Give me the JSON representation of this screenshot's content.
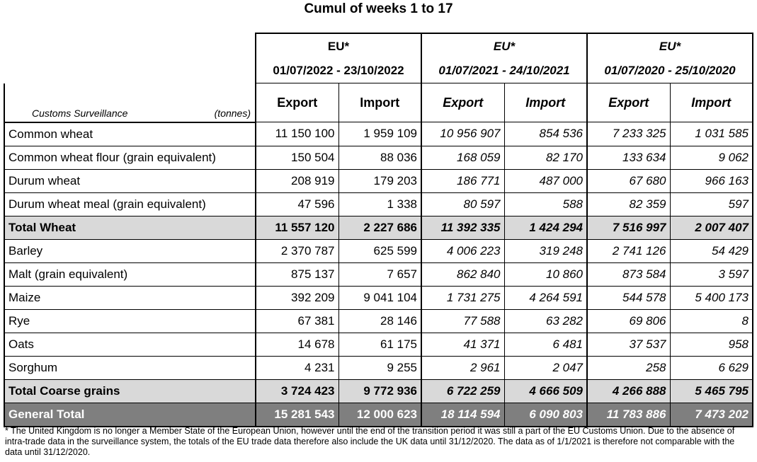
{
  "title": "Cumul of weeks 1 to 17",
  "header": {
    "customs_label": "Customs Surveillance",
    "unit_label": "(tonnes)",
    "periods": [
      {
        "region": "EU*",
        "dates": "01/07/2022 - 23/10/2022",
        "export": "Export",
        "import": "Import",
        "italic": false
      },
      {
        "region": "EU*",
        "dates": "01/07/2021 - 24/10/2021",
        "export": "Export",
        "import": "Import",
        "italic": true
      },
      {
        "region": "EU*",
        "dates": "01/07/2020 - 25/10/2020",
        "export": "Export",
        "import": "Import",
        "italic": true
      }
    ]
  },
  "rows": [
    {
      "label": "Common wheat",
      "type": "normal",
      "values": [
        "11 150 100",
        "1 959 109",
        "10 956 907",
        "854 536",
        "7 233 325",
        "1 031 585"
      ]
    },
    {
      "label": "Common wheat flour (grain equivalent)",
      "type": "normal",
      "values": [
        "150 504",
        "88 036",
        "168 059",
        "82 170",
        "133 634",
        "9 062"
      ]
    },
    {
      "label": "Durum wheat",
      "type": "normal",
      "values": [
        "208 919",
        "179 203",
        "186 771",
        "487 000",
        "67 680",
        "966 163"
      ]
    },
    {
      "label": "Durum wheat meal (grain equivalent)",
      "type": "normal",
      "values": [
        "47 596",
        "1 338",
        "80 597",
        "588",
        "82 359",
        "597"
      ]
    },
    {
      "label": "Total Wheat",
      "type": "total",
      "values": [
        "11 557 120",
        "2 227 686",
        "11 392 335",
        "1 424 294",
        "7 516 997",
        "2 007 407"
      ]
    },
    {
      "label": "Barley",
      "type": "normal",
      "values": [
        "2 370 787",
        "625 599",
        "4 006 223",
        "319 248",
        "2 741 126",
        "54 429"
      ]
    },
    {
      "label": "Malt (grain equivalent)",
      "type": "normal",
      "values": [
        "875 137",
        "7 657",
        "862 840",
        "10 860",
        "873 584",
        "3 597"
      ]
    },
    {
      "label": "Maize",
      "type": "normal",
      "values": [
        "392 209",
        "9 041 104",
        "1 731 275",
        "4 264 591",
        "544 578",
        "5 400 173"
      ]
    },
    {
      "label": "Rye",
      "type": "normal",
      "values": [
        "67 381",
        "28 146",
        "77 588",
        "63 282",
        "69 806",
        "8"
      ]
    },
    {
      "label": "Oats",
      "type": "normal",
      "values": [
        "14 678",
        "61 175",
        "41 371",
        "6 481",
        "37 537",
        "958"
      ]
    },
    {
      "label": "Sorghum",
      "type": "normal",
      "values": [
        "4 231",
        "9 255",
        "2 961",
        "2 047",
        "258",
        "6 629"
      ]
    },
    {
      "label": "Total Coarse grains",
      "type": "total",
      "values": [
        "3 724 423",
        "9 772 936",
        "6 722 259",
        "4 666 509",
        "4 266 888",
        "5 465 795"
      ]
    },
    {
      "label": "General Total",
      "type": "grand",
      "values": [
        "15 281 543",
        "12 000 623",
        "18 114 594",
        "6 090 803",
        "11 783 886",
        "7 473 202"
      ]
    }
  ],
  "footnote": "* The United Kingdom is no longer a Member State of the European Union, however until the end of the transition period it was still a part of the EU Customs Union. Due to the absence of intra-trade data in the surveillance system, the totals of the EU trade data  therefore also include the UK data until 31/12/2020. The data as of 1/1/2021 is therefore not comparable with the data until 31/12/2020."
}
